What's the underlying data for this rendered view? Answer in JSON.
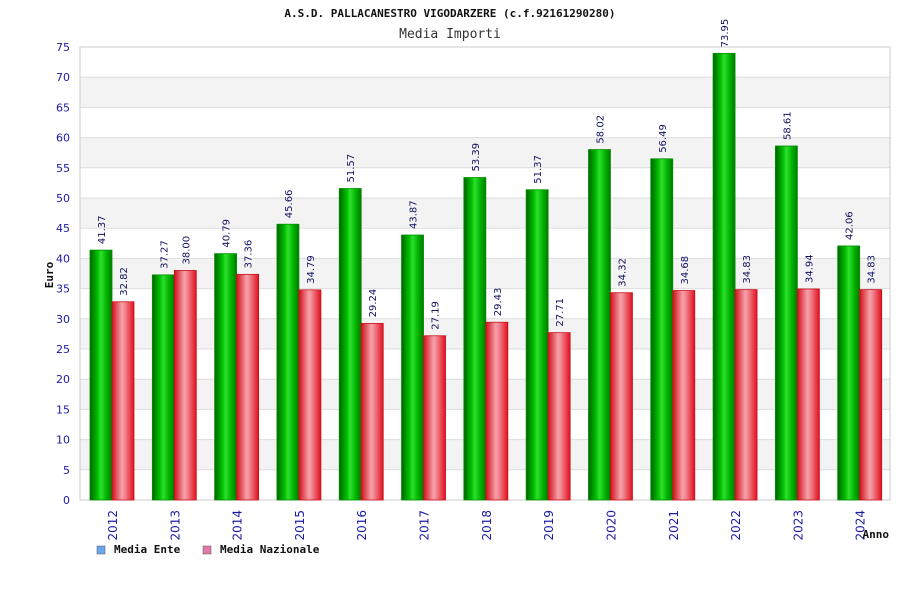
{
  "chart_data": {
    "type": "bar",
    "title": "A.S.D. PALLACANESTRO VIGODARZERE (c.f.92161290280)",
    "subtitle": "Media Importi",
    "xlabel": "Anno",
    "ylabel": "Euro",
    "ylim": [
      0,
      75
    ],
    "yticks": [
      0,
      5,
      10,
      15,
      20,
      25,
      30,
      35,
      40,
      45,
      50,
      55,
      60,
      65,
      70,
      75
    ],
    "grid": true,
    "legend_position": "bottom-left",
    "categories": [
      "2012",
      "2013",
      "2014",
      "2015",
      "2016",
      "2017",
      "2018",
      "2019",
      "2020",
      "2021",
      "2022",
      "2023",
      "2024"
    ],
    "series": [
      {
        "name": "Media Ente",
        "color": "#00b000",
        "legend_color": "#6aa8ee",
        "values": [
          41.37,
          37.27,
          40.79,
          45.66,
          51.57,
          43.87,
          53.39,
          51.37,
          58.02,
          56.49,
          73.95,
          58.61,
          42.06
        ],
        "labels": [
          "41.37",
          "37.27",
          "40.79",
          "45.66",
          "51.57",
          "43.87",
          "53.39",
          "51.37",
          "58.02",
          "56.49",
          "73.95",
          "58.61",
          "42.06"
        ]
      },
      {
        "name": "Media Nazionale",
        "color": "#e8202a",
        "legend_color": "#e07aa8",
        "values": [
          32.82,
          38.0,
          37.36,
          34.79,
          29.24,
          27.19,
          29.43,
          27.71,
          34.32,
          34.68,
          34.83,
          34.94,
          34.83
        ],
        "labels": [
          "32.82",
          "38.00",
          "37.36",
          "34.79",
          "29.24",
          "27.19",
          "29.43",
          "27.71",
          "34.32",
          "34.68",
          "34.83",
          "34.94",
          "34.83"
        ]
      }
    ]
  }
}
